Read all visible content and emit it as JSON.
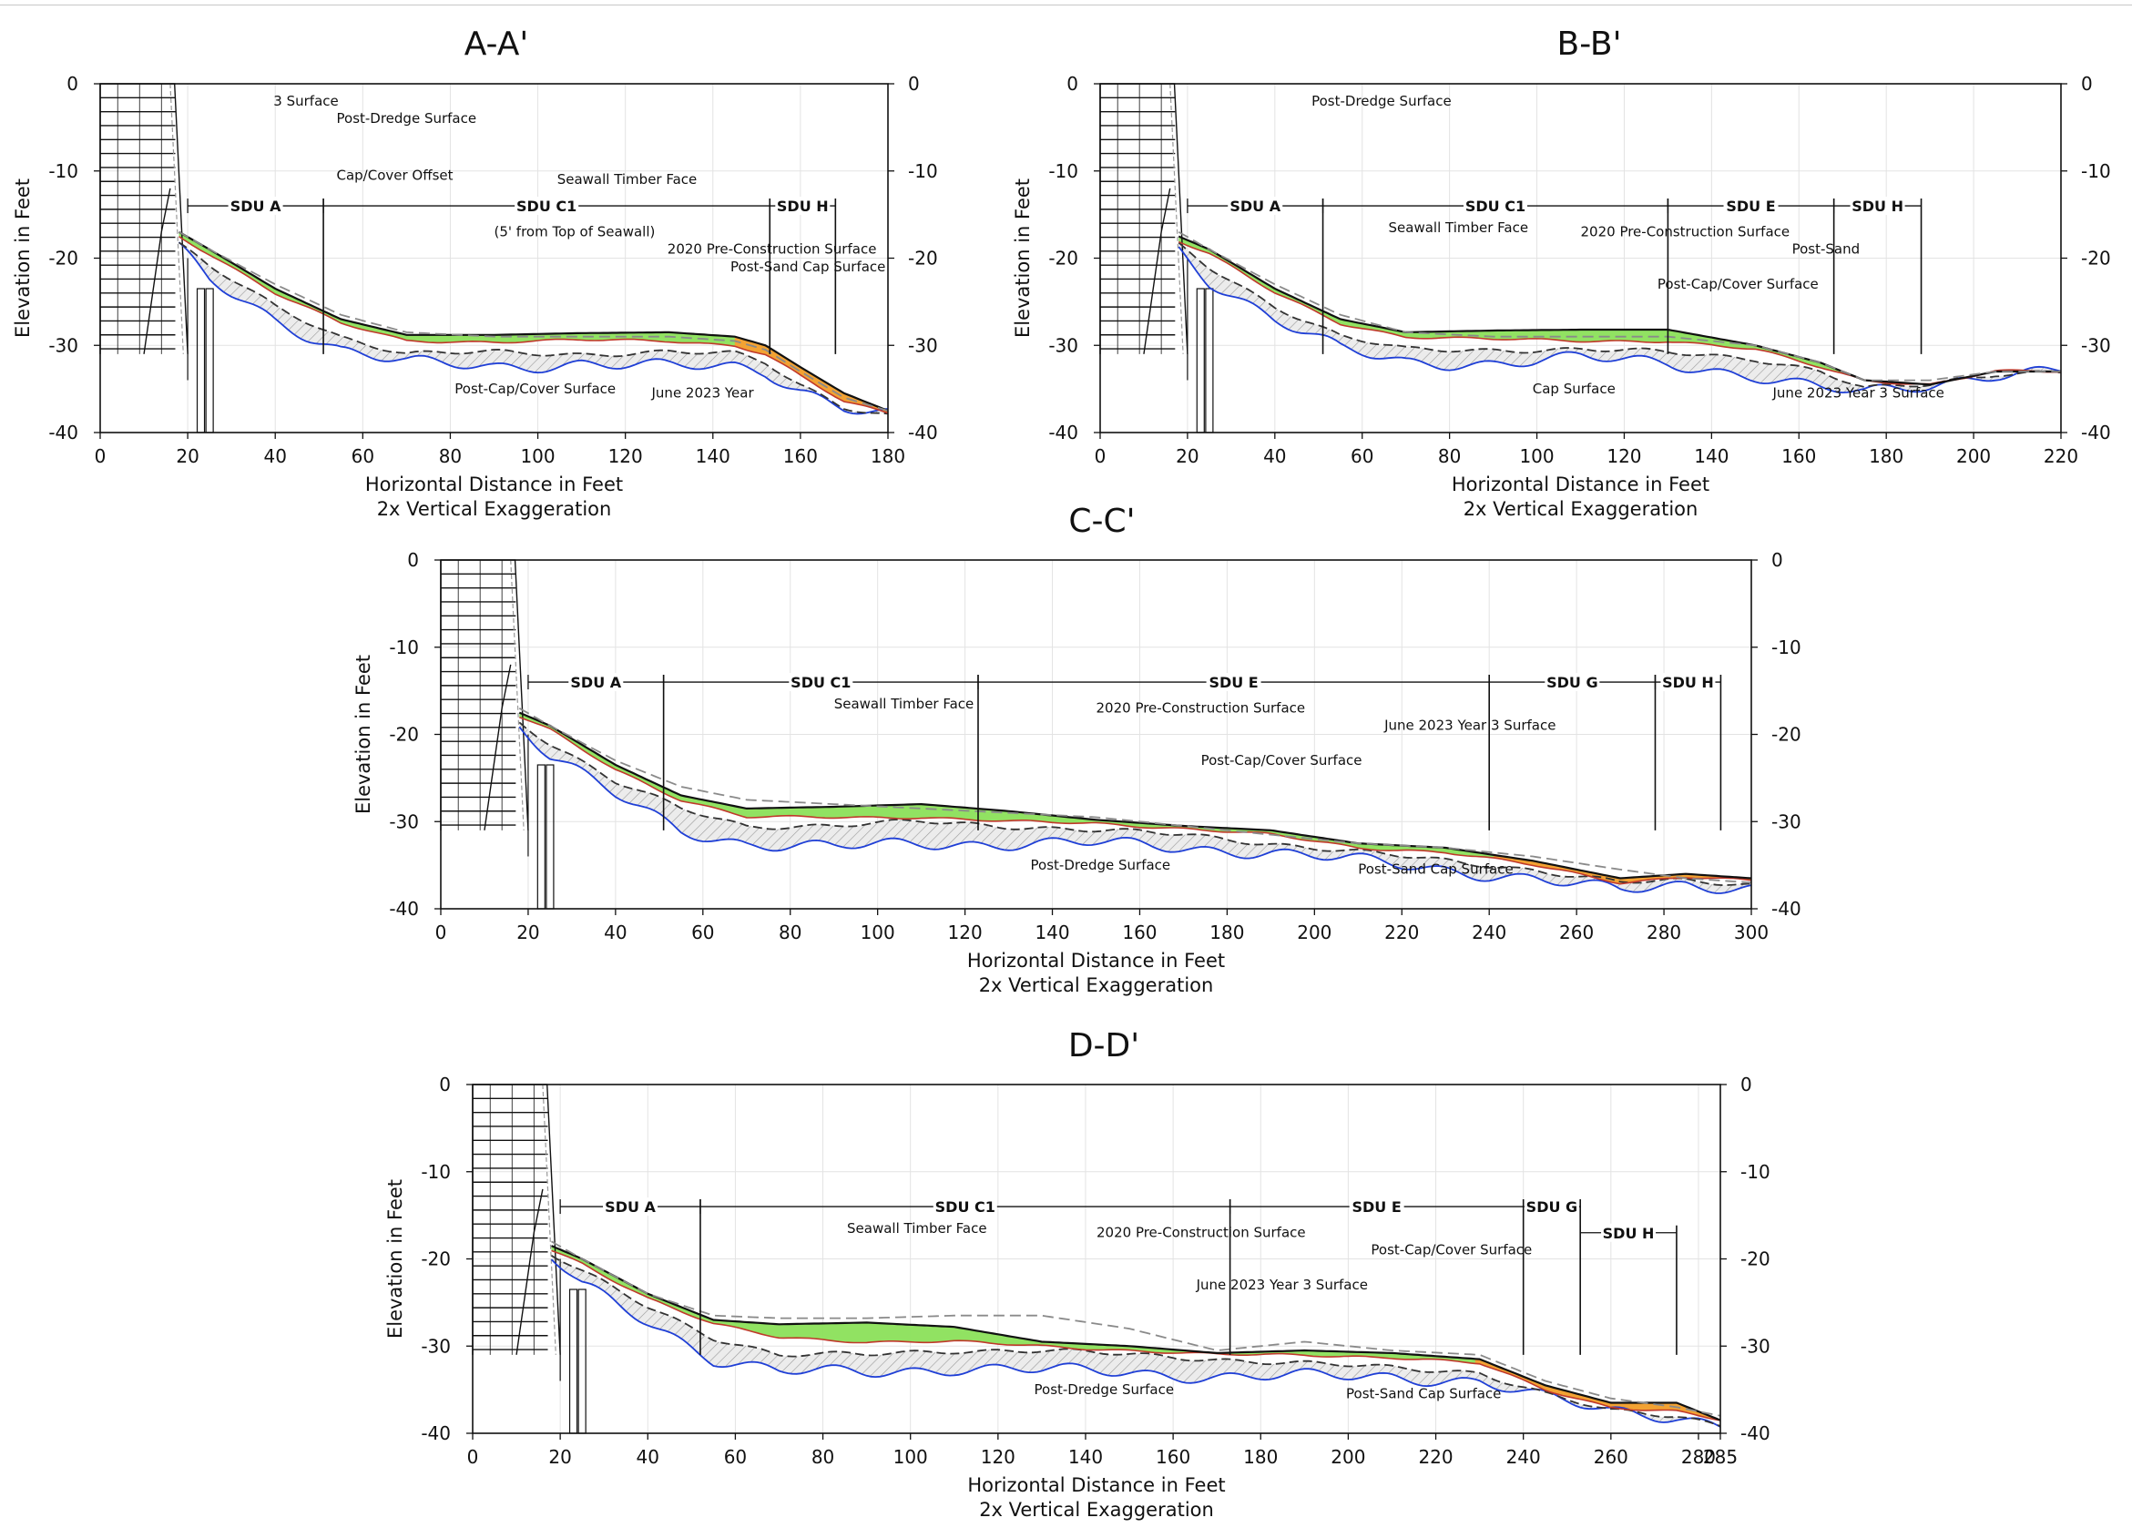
{
  "chart_data": [
    {
      "type": "area",
      "title": "A-A'",
      "xlabel": "Horizontal Distance in Feet",
      "xlabel2": "2x Vertical Exaggeration",
      "ylabel": "Elevation in Feet",
      "xlim": [
        0,
        180
      ],
      "ylim": [
        -40,
        0
      ],
      "xticks": [
        "0",
        "20",
        "40",
        "60",
        "80",
        "100",
        "120",
        "140",
        "160",
        "180"
      ],
      "yticks": [
        "0",
        "-10",
        "-20",
        "-30",
        "-40"
      ],
      "grid": true,
      "sdu_units": [
        {
          "label": "SDU A",
          "from": 20,
          "to": 51
        },
        {
          "label": "SDU C1",
          "from": 51,
          "to": 153
        },
        {
          "label": "SDU H",
          "from": 153,
          "to": 168
        }
      ],
      "annotations": [
        "Cap/Cover Offset",
        "(5' from Top of Seawall)",
        "Seawall Timber Face",
        "2020 Pre-Construction Surface",
        "Post-Cap/Cover Surface",
        "June 2023 Year",
        "3 Surface",
        "Post-Dredge Surface",
        "Post-Sand Cap Surface"
      ],
      "series": [
        {
          "name": "2020 Pre-Construction Surface",
          "x": [
            18,
            25,
            40,
            55,
            70,
            90,
            110,
            130,
            145,
            152,
            160,
            170,
            180
          ],
          "y": [
            -17,
            -19,
            -23,
            -26.5,
            -28.5,
            -29,
            -29,
            -29,
            -29.5,
            -30.5,
            -33,
            -36,
            -37.5
          ]
        },
        {
          "name": "Post-Cap/Cover Surface",
          "x": [
            18,
            25,
            40,
            55,
            70,
            90,
            110,
            130,
            145,
            152,
            160,
            170,
            180
          ],
          "y": [
            -17,
            -19,
            -23.5,
            -27,
            -28.8,
            -28.8,
            -28.6,
            -28.5,
            -29,
            -30,
            -32.5,
            -35.5,
            -37.5
          ]
        },
        {
          "name": "June 2023 Year 3 Surface",
          "x": [
            18,
            25,
            40,
            55,
            70,
            90,
            110,
            130,
            145,
            152,
            160,
            170,
            180
          ],
          "y": [
            -17.5,
            -19.5,
            -24,
            -27.5,
            -29.5,
            -29.6,
            -29.4,
            -29.5,
            -30,
            -31,
            -33.5,
            -36.5,
            -37.8
          ]
        },
        {
          "name": "Post-Sand Cap Surface",
          "x": [
            18,
            25,
            40,
            55,
            70,
            90,
            110,
            130,
            145,
            152,
            160,
            170,
            180
          ],
          "y": [
            -18.5,
            -21,
            -25.5,
            -29,
            -31,
            -30.8,
            -31,
            -30.8,
            -31,
            -32,
            -34.5,
            -37,
            -38
          ]
        },
        {
          "name": "Post-Dredge Surface",
          "x": [
            18,
            25,
            40,
            55,
            70,
            90,
            110,
            130,
            145,
            152,
            160,
            170,
            180
          ],
          "y": [
            -19,
            -22.5,
            -27,
            -30.5,
            -32,
            -32.5,
            -32,
            -32.5,
            -32.5,
            -33,
            -35,
            -37,
            -38
          ]
        }
      ]
    },
    {
      "type": "area",
      "title": "B-B'",
      "xlabel": "Horizontal Distance in Feet",
      "xlabel2": "2x Vertical Exaggeration",
      "ylabel": "Elevation in Feet",
      "xlim": [
        0,
        220
      ],
      "ylim": [
        -40,
        0
      ],
      "xticks": [
        "0",
        "20",
        "40",
        "60",
        "80",
        "100",
        "120",
        "140",
        "160",
        "180",
        "200",
        "220"
      ],
      "yticks": [
        "0",
        "-10",
        "-20",
        "-30",
        "-40"
      ],
      "grid": true,
      "sdu_units": [
        {
          "label": "SDU A",
          "from": 20,
          "to": 51
        },
        {
          "label": "SDU C1",
          "from": 51,
          "to": 130
        },
        {
          "label": "SDU E",
          "from": 130,
          "to": 168
        },
        {
          "label": "SDU H",
          "from": 168,
          "to": 188
        }
      ],
      "annotations": [
        "Seawall Timber Face",
        "2020 Pre-Construction Surface",
        "Post-Cap/Cover Surface",
        "Post-Sand",
        "Cap Surface",
        "June 2023 Year 3 Surface",
        "Post-Dredge Surface"
      ],
      "series": [
        {
          "name": "2020 Pre-Construction Surface",
          "x": [
            18,
            25,
            40,
            55,
            70,
            90,
            110,
            130,
            150,
            165,
            175,
            190,
            205,
            220
          ],
          "y": [
            -17,
            -19,
            -23,
            -26.5,
            -28.5,
            -29,
            -29,
            -29,
            -30,
            -32,
            -34,
            -34,
            -33,
            -33
          ]
        },
        {
          "name": "Post-Cap/Cover Surface",
          "x": [
            18,
            25,
            40,
            55,
            70,
            90,
            110,
            130,
            150,
            165,
            175,
            190,
            205,
            220
          ],
          "y": [
            -17.5,
            -19,
            -23.5,
            -27,
            -28.5,
            -28.3,
            -28.2,
            -28.2,
            -30,
            -32,
            -34,
            -34.5,
            -33,
            -33
          ]
        },
        {
          "name": "June 2023 Year 3 Surface",
          "x": [
            18,
            25,
            40,
            55,
            70,
            90,
            110,
            130,
            150,
            165,
            175,
            190,
            205,
            220
          ],
          "y": [
            -18,
            -19.5,
            -24,
            -27.5,
            -29,
            -29.3,
            -29.5,
            -29.5,
            -30.5,
            -32.5,
            -34,
            -34.5,
            -33,
            -33
          ]
        },
        {
          "name": "Post-Sand Cap Surface",
          "x": [
            18,
            25,
            40,
            55,
            70,
            90,
            110,
            130,
            150,
            165,
            175,
            190,
            205,
            220
          ],
          "y": [
            -18.5,
            -21,
            -25.5,
            -29,
            -30.5,
            -30.5,
            -30.5,
            -30.8,
            -31.5,
            -33,
            -35,
            -34.5,
            -33.2,
            -33
          ]
        },
        {
          "name": "Post-Dredge Surface",
          "x": [
            18,
            25,
            40,
            55,
            70,
            90,
            110,
            130,
            150,
            165,
            175,
            190,
            205,
            220
          ],
          "y": [
            -19,
            -22.5,
            -27,
            -30.5,
            -32,
            -32,
            -31.5,
            -32,
            -33.5,
            -35,
            -35.5,
            -34.5,
            -33.2,
            -33
          ]
        }
      ]
    },
    {
      "type": "area",
      "title": "C-C'",
      "xlabel": "Horizontal Distance in Feet",
      "xlabel2": "2x Vertical Exaggeration",
      "ylabel": "Elevation in Feet",
      "xlim": [
        0,
        300
      ],
      "ylim": [
        -40,
        0
      ],
      "xticks": [
        "0",
        "20",
        "40",
        "60",
        "80",
        "100",
        "120",
        "140",
        "160",
        "180",
        "200",
        "220",
        "240",
        "260",
        "280",
        "300"
      ],
      "yticks": [
        "0",
        "-10",
        "-20",
        "-30",
        "-40"
      ],
      "grid": true,
      "sdu_units": [
        {
          "label": "SDU A",
          "from": 20,
          "to": 51
        },
        {
          "label": "SDU C1",
          "from": 51,
          "to": 123
        },
        {
          "label": "SDU E",
          "from": 123,
          "to": 240
        },
        {
          "label": "SDU G",
          "from": 240,
          "to": 278
        },
        {
          "label": "SDU H",
          "from": 278,
          "to": 293
        }
      ],
      "annotations": [
        "Seawall Timber Face",
        "2020 Pre-Construction Surface",
        "Post-Cap/Cover Surface",
        "June 2023 Year 3 Surface",
        "Post-Dredge Surface",
        "Post-Sand Cap Surface"
      ],
      "series": [
        {
          "name": "2020 Pre-Construction Surface",
          "x": [
            18,
            25,
            40,
            55,
            70,
            90,
            110,
            130,
            150,
            170,
            190,
            210,
            230,
            250,
            270,
            285,
            300
          ],
          "y": [
            -17,
            -19,
            -23,
            -26,
            -27.5,
            -28,
            -28.5,
            -29,
            -29.5,
            -30.5,
            -31.5,
            -32.5,
            -33,
            -34,
            -35.5,
            -36.5,
            -37
          ]
        },
        {
          "name": "Post-Cap/Cover Surface",
          "x": [
            18,
            25,
            40,
            55,
            70,
            90,
            110,
            130,
            150,
            170,
            190,
            210,
            230,
            250,
            270,
            285,
            300
          ],
          "y": [
            -17.5,
            -19,
            -23.5,
            -27,
            -28.5,
            -28.3,
            -28,
            -28.8,
            -29.8,
            -30.5,
            -31,
            -32.5,
            -33,
            -34.5,
            -36.5,
            -36,
            -36.5
          ]
        },
        {
          "name": "June 2023 Year 3 Surface",
          "x": [
            18,
            25,
            40,
            55,
            70,
            90,
            110,
            130,
            150,
            170,
            190,
            210,
            230,
            250,
            270,
            285,
            300
          ],
          "y": [
            -18,
            -19.5,
            -24,
            -27.5,
            -29.5,
            -29.5,
            -29.5,
            -30,
            -30.2,
            -30.8,
            -31.5,
            -33,
            -33.5,
            -35,
            -37,
            -36.3,
            -36.8
          ]
        },
        {
          "name": "Post-Sand Cap Surface",
          "x": [
            18,
            25,
            40,
            55,
            70,
            90,
            110,
            130,
            150,
            170,
            190,
            210,
            230,
            250,
            270,
            285,
            300
          ],
          "y": [
            -18.5,
            -21,
            -25.5,
            -28.5,
            -30.5,
            -30.5,
            -30,
            -30.5,
            -31,
            -31.5,
            -32.5,
            -33.5,
            -34.5,
            -35.5,
            -37,
            -36.8,
            -37.2
          ]
        },
        {
          "name": "Post-Dredge Surface",
          "x": [
            18,
            25,
            40,
            55,
            70,
            90,
            110,
            130,
            150,
            170,
            190,
            210,
            230,
            250,
            270,
            285,
            300
          ],
          "y": [
            -19,
            -22.5,
            -27,
            -31,
            -32.5,
            -33,
            -32.5,
            -32.5,
            -32.5,
            -33,
            -33.5,
            -34.5,
            -35.5,
            -36.5,
            -38,
            -37.2,
            -37.5
          ]
        }
      ]
    },
    {
      "type": "area",
      "title": "D-D'",
      "xlabel": "Horizontal Distance in Feet",
      "xlabel2": "2x Vertical Exaggeration",
      "ylabel": "Elevation in Feet",
      "xlim": [
        0,
        285
      ],
      "ylim": [
        -40,
        0
      ],
      "xticks": [
        "0",
        "20",
        "40",
        "60",
        "80",
        "100",
        "120",
        "140",
        "160",
        "180",
        "200",
        "220",
        "240",
        "260",
        "280",
        "285"
      ],
      "yticks": [
        "0",
        "-10",
        "-20",
        "-30",
        "-40"
      ],
      "grid": true,
      "sdu_units": [
        {
          "label": "SDU A",
          "from": 20,
          "to": 52
        },
        {
          "label": "SDU C1",
          "from": 52,
          "to": 173
        },
        {
          "label": "SDU E",
          "from": 173,
          "to": 240
        },
        {
          "label": "SDU G",
          "from": 240,
          "to": 253
        },
        {
          "label": "SDU H",
          "from": 253,
          "to": 275,
          "row": 2
        }
      ],
      "annotations": [
        "Seawall Timber Face",
        "2020 Pre-Construction Surface",
        "June 2023 Year 3 Surface",
        "Post-Cap/Cover Surface",
        "Post-Dredge Surface",
        "Post-Sand Cap Surface"
      ],
      "series": [
        {
          "name": "2020 Pre-Construction Surface",
          "x": [
            18,
            25,
            40,
            55,
            70,
            90,
            110,
            130,
            150,
            170,
            190,
            210,
            230,
            245,
            260,
            275,
            285
          ],
          "y": [
            -18,
            -20,
            -24,
            -26.5,
            -26.8,
            -26.8,
            -26.5,
            -26.5,
            -28,
            -30.5,
            -29.5,
            -30.5,
            -31,
            -34,
            -36,
            -37,
            -38
          ]
        },
        {
          "name": "Post-Cap/Cover Surface",
          "x": [
            18,
            25,
            40,
            55,
            70,
            90,
            110,
            130,
            150,
            170,
            190,
            210,
            230,
            245,
            260,
            275,
            285
          ],
          "y": [
            -18.5,
            -20,
            -24,
            -27,
            -27.5,
            -27.3,
            -27.8,
            -29.5,
            -30,
            -30.8,
            -30.5,
            -30.8,
            -31.5,
            -34.5,
            -36.5,
            -36.5,
            -38.5
          ]
        },
        {
          "name": "June 2023 Year 3 Surface",
          "x": [
            18,
            25,
            40,
            55,
            70,
            90,
            110,
            130,
            150,
            170,
            190,
            210,
            230,
            245,
            260,
            275,
            285
          ],
          "y": [
            -19,
            -20.5,
            -24.5,
            -27.5,
            -29,
            -29.5,
            -29.5,
            -30,
            -30.5,
            -31,
            -31,
            -31.3,
            -32,
            -35,
            -37,
            -37.5,
            -38.5
          ]
        },
        {
          "name": "Post-Sand Cap Surface",
          "x": [
            18,
            25,
            40,
            55,
            70,
            90,
            110,
            130,
            150,
            170,
            190,
            210,
            230,
            245,
            260,
            275,
            285
          ],
          "y": [
            -19.5,
            -21.5,
            -25.5,
            -29,
            -31,
            -31,
            -30.5,
            -30.5,
            -31,
            -31.5,
            -32,
            -32.5,
            -33,
            -35.5,
            -37.5,
            -38,
            -39
          ]
        },
        {
          "name": "Post-Dredge Surface",
          "x": [
            18,
            25,
            40,
            55,
            70,
            90,
            110,
            130,
            150,
            170,
            190,
            210,
            230,
            245,
            260,
            275,
            285
          ],
          "y": [
            -20,
            -23,
            -27,
            -31.5,
            -33,
            -33,
            -32.5,
            -32.8,
            -33,
            -33.5,
            -33.5,
            -33.5,
            -34,
            -36,
            -37.5,
            -38,
            -39
          ]
        }
      ]
    }
  ],
  "colors": {
    "pre": "#8a8a8a",
    "postcap": "#111111",
    "june2023": "#c0392b",
    "sandcap": "#333333",
    "dredge": "#1f3fd6",
    "capfill": "#8be05a",
    "lossfill": "#f2a233",
    "sandfill": "#d2d2d2",
    "grid": "#e3e3e3"
  }
}
